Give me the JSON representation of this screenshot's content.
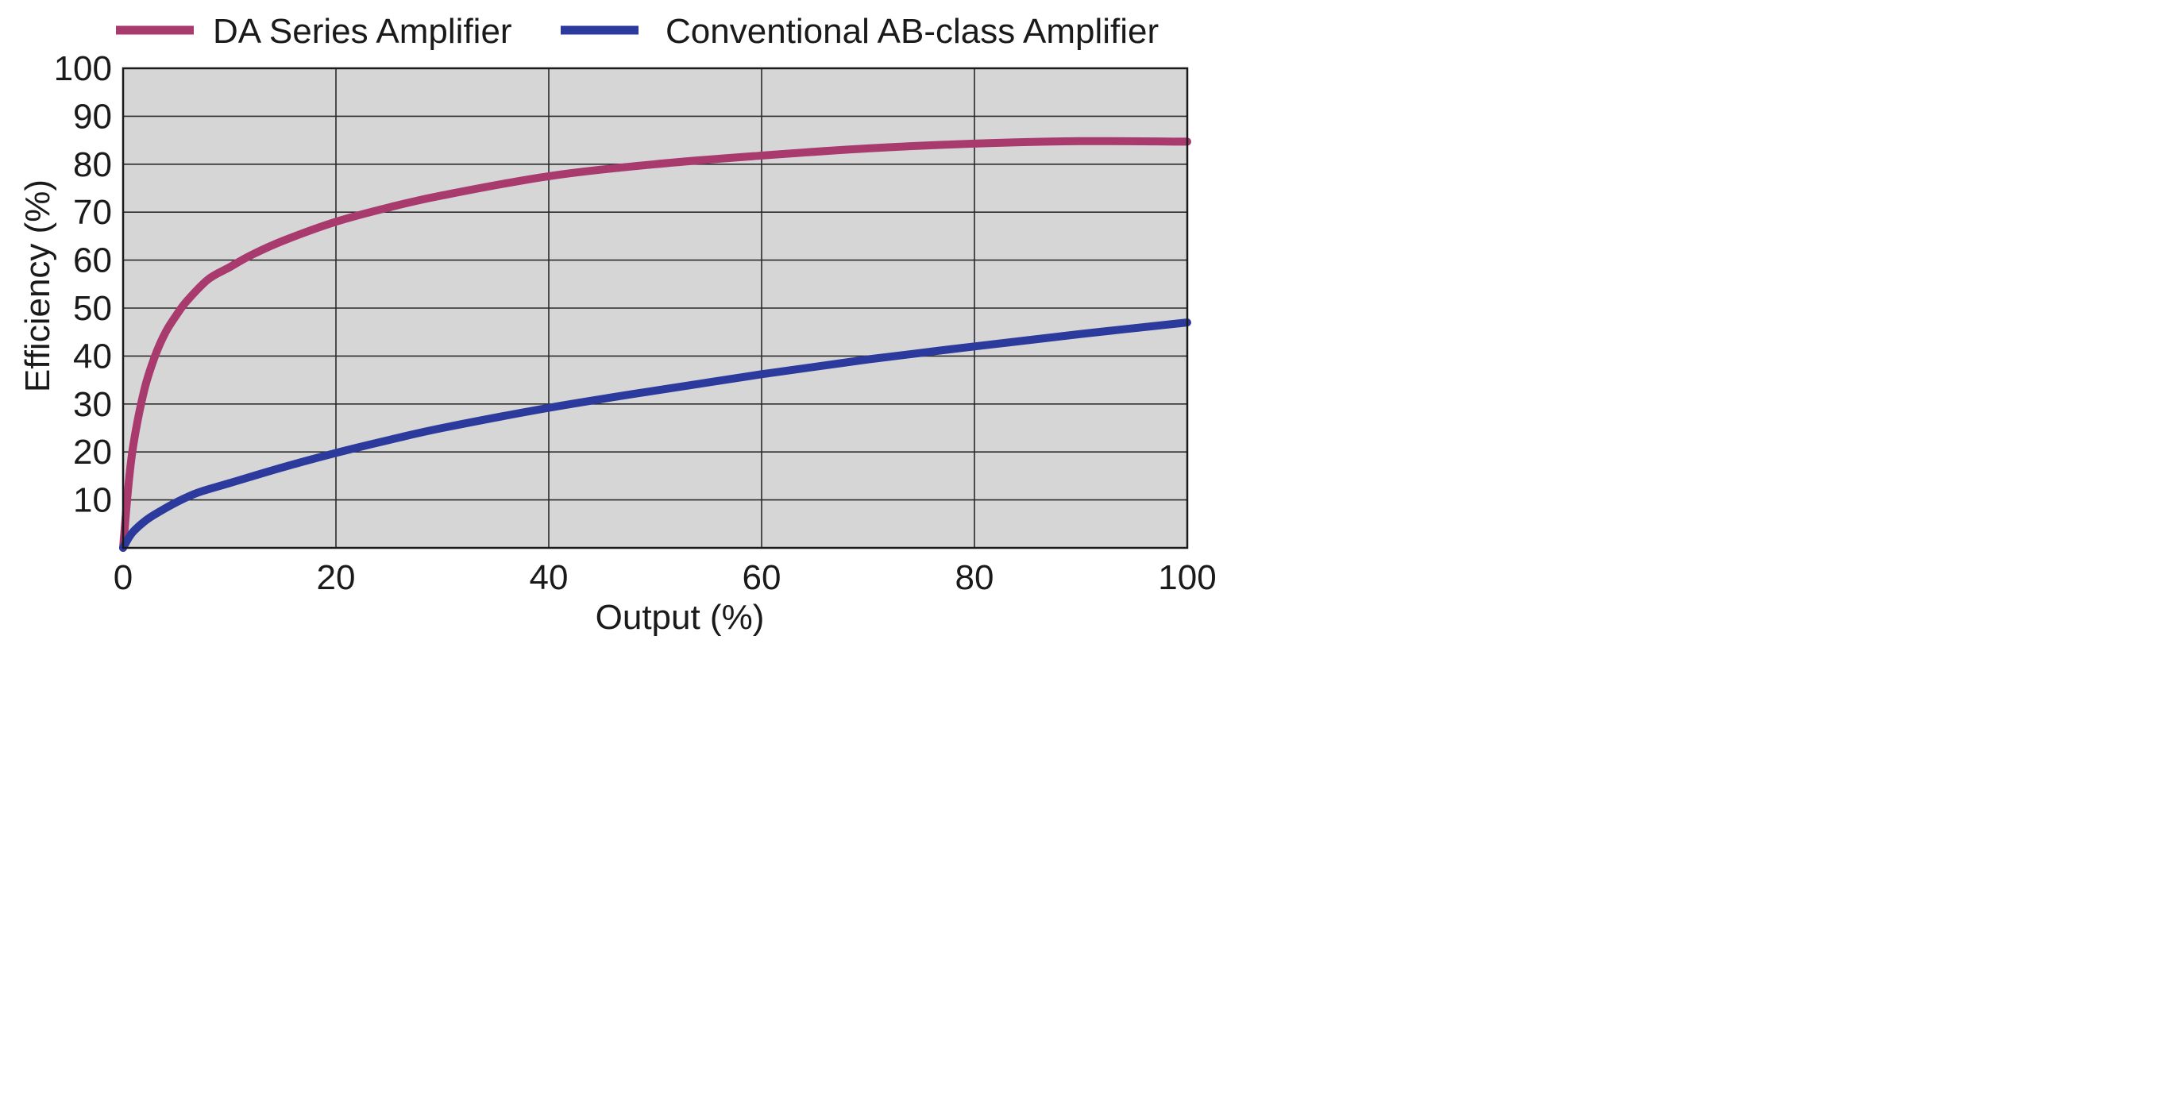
{
  "chart_data": {
    "type": "line",
    "title": "",
    "xlabel": "Output (%)",
    "ylabel": "Efficiency (%)",
    "xlim": [
      0,
      100
    ],
    "ylim": [
      0,
      100
    ],
    "grid": true,
    "background_color": "#d6d6d6",
    "legend_position": "top",
    "x_ticks": [
      "0",
      "20",
      "40",
      "60",
      "80",
      "100"
    ],
    "y_ticks": [
      "10",
      "20",
      "30",
      "40",
      "50",
      "60",
      "70",
      "80",
      "90",
      "100"
    ],
    "series": [
      {
        "name": "DA Series Amplifier",
        "color": "#a83a6e",
        "x": [
          0,
          0.5,
          1,
          2,
          3,
          4,
          5,
          6,
          8,
          10,
          12,
          15,
          20,
          25,
          30,
          40,
          50,
          60,
          70,
          80,
          90,
          100
        ],
        "y": [
          0,
          13,
          22,
          33,
          40,
          45,
          48.5,
          51.5,
          56,
          58.5,
          61,
          64,
          68,
          71,
          73.5,
          77.5,
          80,
          81.8,
          83.3,
          84.3,
          84.8,
          84.7
        ]
      },
      {
        "name": "Conventional AB-class Amplifier",
        "color": "#2b3a9c",
        "x": [
          0,
          0.5,
          1,
          2,
          3,
          5,
          7,
          10,
          15,
          20,
          25,
          30,
          40,
          50,
          60,
          70,
          80,
          90,
          100
        ],
        "y": [
          0,
          2,
          3.5,
          5.5,
          7,
          9.5,
          11.5,
          13.5,
          16.8,
          19.8,
          22.5,
          25,
          29.2,
          32.8,
          36.2,
          39.3,
          42,
          44.6,
          47
        ]
      }
    ]
  }
}
